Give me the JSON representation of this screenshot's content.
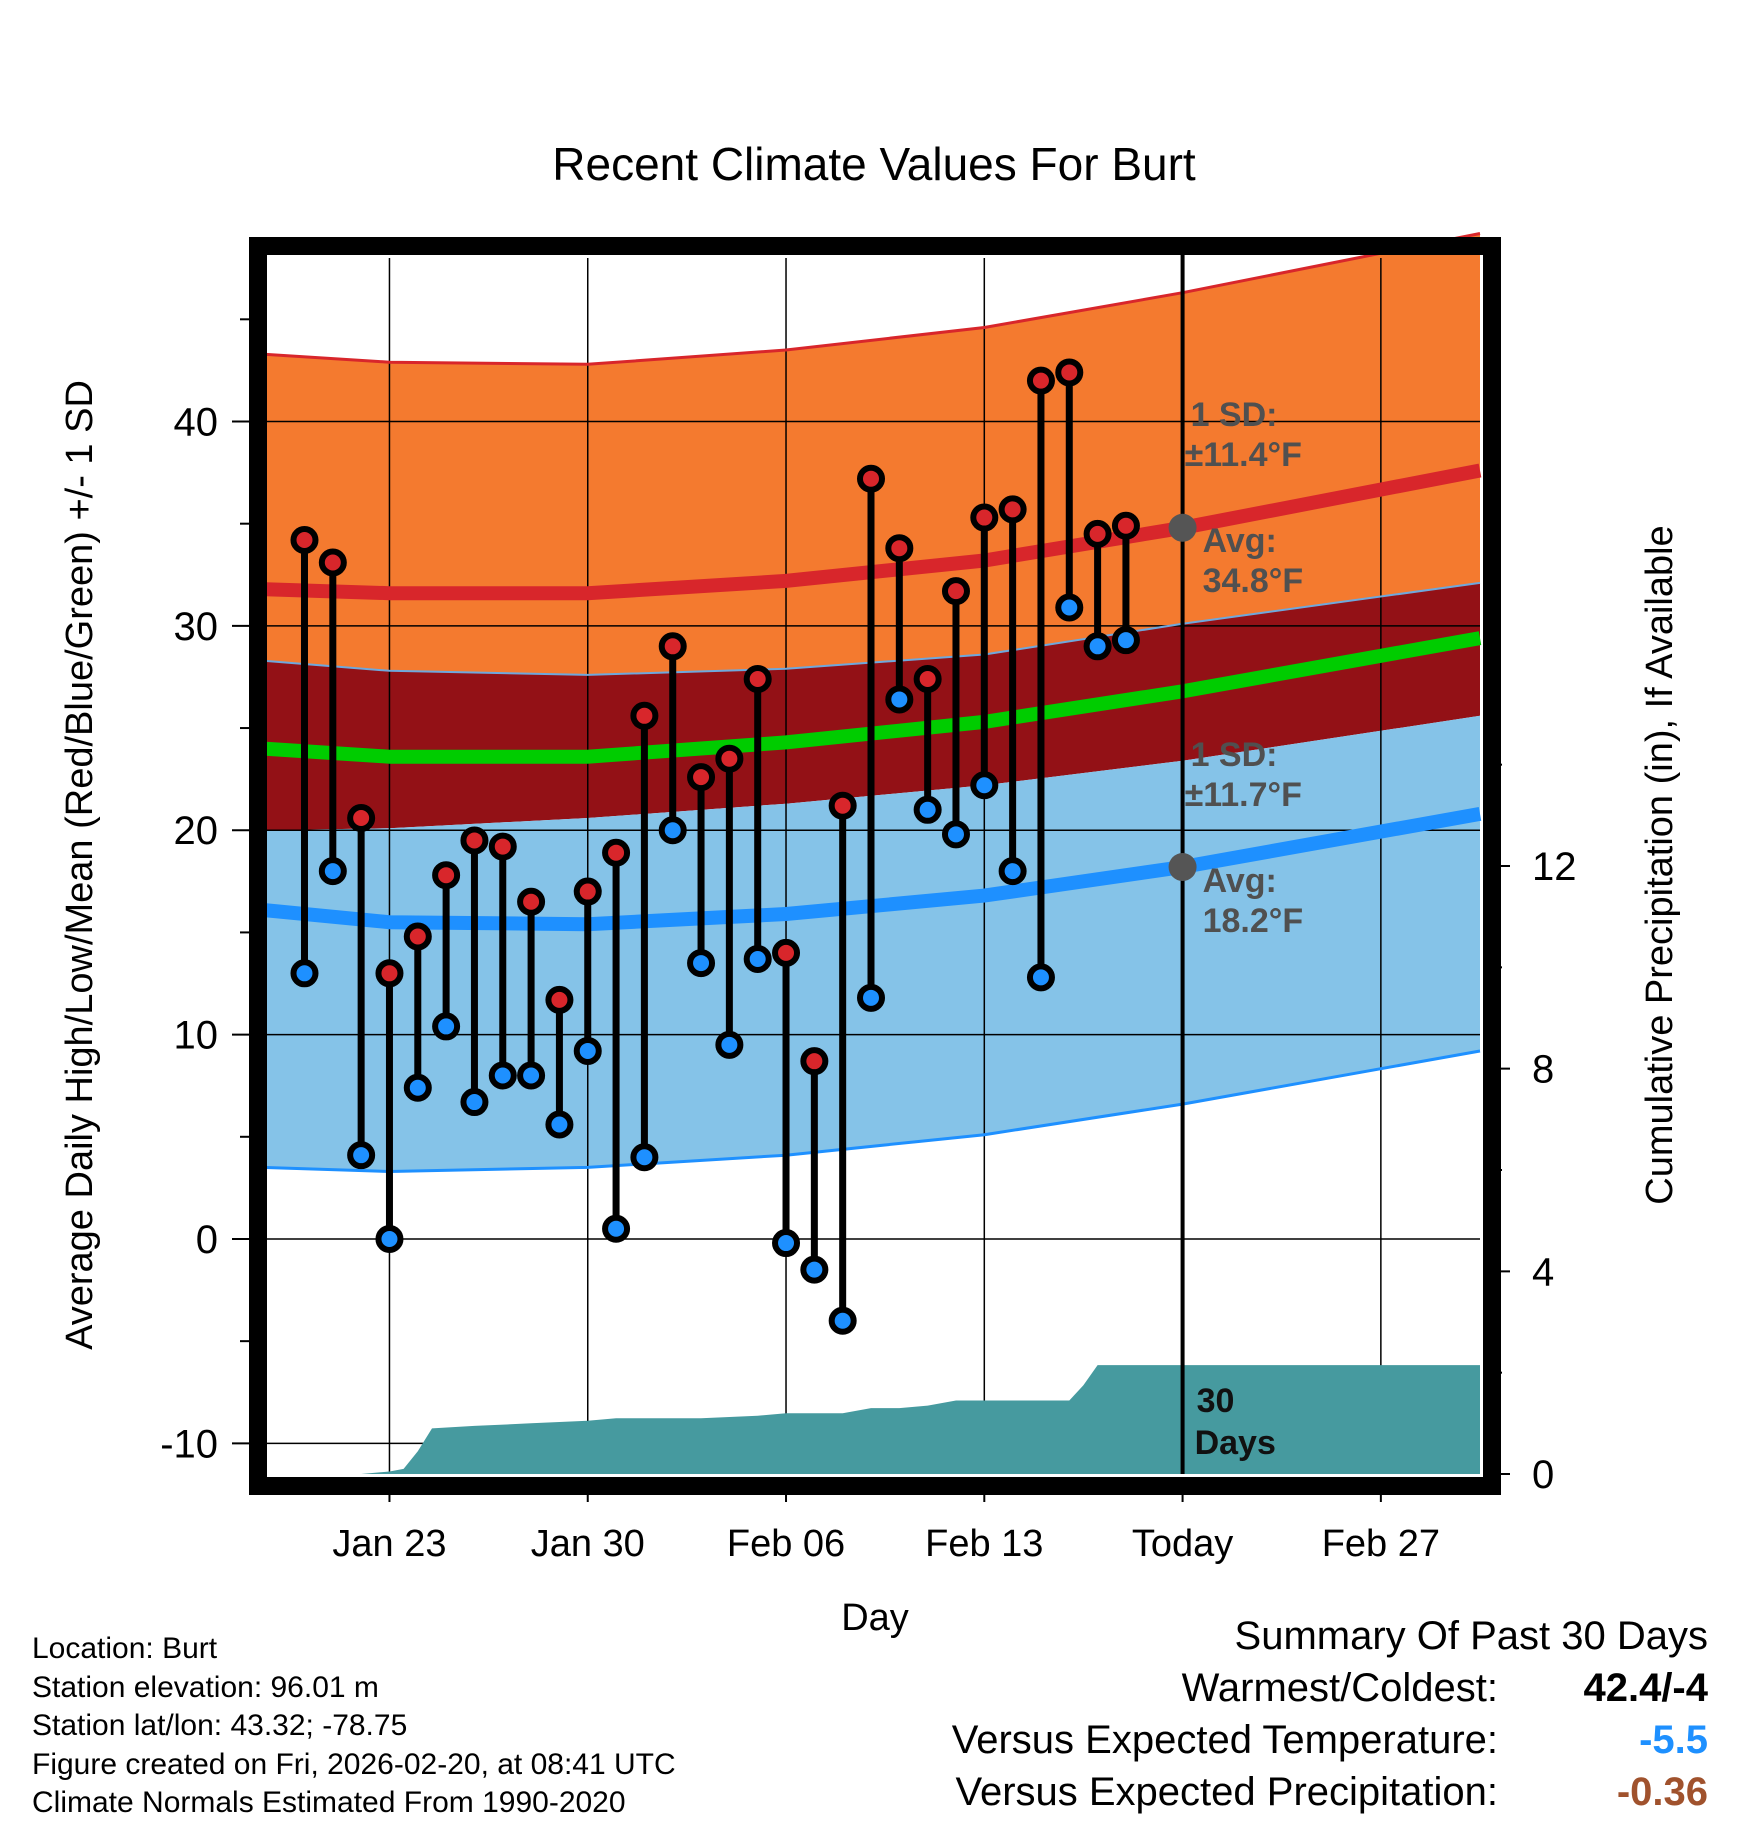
{
  "chart_data": {
    "type": "line",
    "title": "Recent Climate Values For Burt",
    "xlabel": "Day",
    "ylabel": "Average Daily High/Low/Mean (Red/Blue/Green) +/- 1 SD",
    "y2label": "Cumulative Precipitation (in), If Available",
    "x_range_days": [
      -32.5,
      10.5
    ],
    "ylim": [
      -11.5,
      48
    ],
    "y2lim": [
      0,
      24
    ],
    "y_ticks": [
      -10,
      0,
      10,
      20,
      30,
      40
    ],
    "y2_ticks": [
      0,
      4,
      8,
      12
    ],
    "x_ticks": [
      {
        "day": -28,
        "label": "Jan 23"
      },
      {
        "day": -21,
        "label": "Jan 30"
      },
      {
        "day": -14,
        "label": "Feb 06"
      },
      {
        "day": -7,
        "label": "Feb 13"
      },
      {
        "day": 0,
        "label": "Today"
      },
      {
        "day": 7,
        "label": "Feb 27"
      }
    ],
    "observed": {
      "days": [
        -31,
        -30,
        -29,
        -28,
        -27,
        -26,
        -25,
        -24,
        -23,
        -22,
        -21,
        -20,
        -19,
        -18,
        -17,
        -16,
        -15,
        -14,
        -13,
        -12,
        -11,
        -10,
        -9,
        -8,
        -7,
        -6,
        -5,
        -4,
        -3,
        -2
      ],
      "high": [
        34.2,
        33.1,
        20.6,
        13,
        14.8,
        17.8,
        19.5,
        19.2,
        16.5,
        11.7,
        17,
        18.9,
        25.6,
        29,
        22.6,
        23.5,
        27.4,
        14,
        8.7,
        21.2,
        37.2,
        33.8,
        27.4,
        31.7,
        35.3,
        35.7,
        42,
        42.4,
        34.5,
        34.9
      ],
      "low": [
        13,
        18,
        4.1,
        0,
        7.4,
        10.4,
        6.7,
        8,
        8,
        5.6,
        9.2,
        0.5,
        4,
        20,
        13.5,
        9.5,
        13.7,
        -0.2,
        -1.5,
        -4,
        11.8,
        26.4,
        21,
        19.8,
        22.2,
        18,
        12.8,
        30.9,
        29,
        29.3
      ]
    },
    "normals_days": [
      -32.5,
      -28,
      -21,
      -14,
      -7,
      0,
      10.5
    ],
    "normal_high_upper": [
      43.3,
      42.9,
      42.8,
      43.5,
      44.6,
      46.3,
      49.2
    ],
    "normal_high": [
      31.8,
      31.6,
      31.6,
      32.2,
      33.2,
      34.8,
      37.6
    ],
    "normal_mid": [
      28.3,
      27.8,
      27.6,
      27.9,
      28.6,
      30.1,
      32.1
    ],
    "normal_mean": [
      24,
      23.6,
      23.6,
      24.3,
      25.3,
      26.8,
      29.4
    ],
    "normal_low_lower_sd": [
      20,
      20.1,
      20.6,
      21.3,
      22.2,
      23.4,
      25.6
    ],
    "normal_low": [
      16.1,
      15.5,
      15.4,
      15.9,
      16.8,
      18.2,
      20.8
    ],
    "normal_low_lower": [
      3.5,
      3.3,
      3.5,
      4.1,
      5.1,
      6.6,
      9.2
    ],
    "precip_days": [
      -32.5,
      -29,
      -28,
      -27.5,
      -27,
      -26.5,
      -25,
      -23,
      -21,
      -20,
      -17,
      -15,
      -14,
      -13,
      -12,
      -11,
      -10,
      -9,
      -8,
      -7,
      -6,
      -5,
      -4,
      -3.5,
      -3,
      10.5
    ],
    "precip_cum": [
      0,
      0,
      0.05,
      0.1,
      0.45,
      0.9,
      0.95,
      1,
      1.05,
      1.1,
      1.1,
      1.15,
      1.2,
      1.2,
      1.2,
      1.3,
      1.3,
      1.35,
      1.45,
      1.45,
      1.45,
      1.45,
      1.45,
      1.75,
      2.15,
      2.15
    ],
    "annotations": {
      "high_sd": "1 SD:",
      "high_sd_value": "±11.4°F",
      "high_avg": "Avg:",
      "high_avg_value": "34.8°F",
      "low_sd": "1 SD:",
      "low_sd_value": "±11.7°F",
      "low_avg": "Avg:",
      "low_avg_value": "18.2°F",
      "precip_label": "30",
      "precip_label2": "Days"
    },
    "today_high_avg": 34.8,
    "today_low_avg": 18.2,
    "colors": {
      "high_band": "#f47a2f",
      "mid_band": "#931116",
      "low_band": "#85c3e8",
      "high_line": "#d8262b",
      "mean_line": "#00cc00",
      "low_line": "#1e90ff",
      "precip": "#469a9f",
      "high_dot": "#d8262b",
      "low_dot": "#1e90ff",
      "avg_dot": "#555555",
      "annotation": "#505050"
    }
  },
  "footer": {
    "location": "Location: Burt",
    "elevation": "Station elevation: 96.01 m",
    "latlon": "Station lat/lon: 43.32; -78.75",
    "created": "Figure created on Fri, 2026-02-20, at 08:41 UTC",
    "normals": "Climate Normals Estimated From 1990-2020"
  },
  "summary": {
    "title": "Summary Of Past 30 Days",
    "warm_cold_label": "Warmest/Coldest:",
    "warm_cold_value": "42.4/-4",
    "temp_label": "Versus Expected Temperature:",
    "temp_value": "-5.5",
    "temp_color": "#1e90ff",
    "precip_label": "Versus Expected Precipitation:",
    "precip_value": "-0.36",
    "precip_color": "#a0522d"
  }
}
